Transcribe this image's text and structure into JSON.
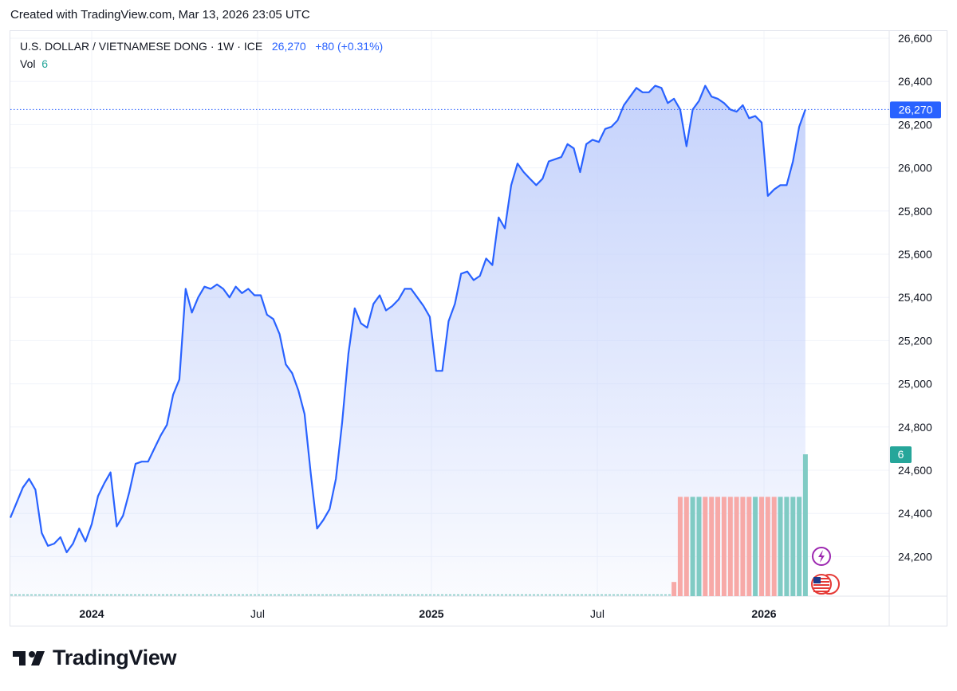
{
  "header": {
    "created_text": "Created with TradingView.com, Mar 13, 2026 23:05 UTC"
  },
  "legend": {
    "symbol": "U.S. DOLLAR / VIETNAMESE DONG · 1W · ICE",
    "last": "26,270",
    "change": "+80 (+0.31%)",
    "vol_label": "Vol",
    "vol_value": "6"
  },
  "footer": {
    "brand": "TradingView"
  },
  "colors": {
    "line": "#2962ff",
    "area_top": "#c6d3fb",
    "vol_up": "#80cbc4",
    "vol_down": "#f7a9a7",
    "vol_badge": "#26a69a",
    "price_badge": "#2962ff"
  },
  "chart_data": {
    "type": "area",
    "title": "U.S. DOLLAR / VIETNAMESE DONG · 1W · ICE",
    "x_tick_labels": [
      "2024",
      "Jul",
      "2025",
      "Jul",
      "2026"
    ],
    "y_tick_labels": [
      "24,200",
      "24,400",
      "24,600",
      "24,800",
      "25,000",
      "25,200",
      "25,400",
      "25,600",
      "25,800",
      "26,000",
      "26,200",
      "26,400",
      "26,600"
    ],
    "ylim": [
      24020,
      26640
    ],
    "grid": true,
    "last_price": 26270,
    "last_price_label": "26,270",
    "volume_label": "6",
    "series": [
      {
        "name": "USD/VND",
        "values": [
          24380,
          24450,
          24520,
          24560,
          24510,
          24310,
          24250,
          24260,
          24290,
          24220,
          24260,
          24330,
          24270,
          24350,
          24480,
          24540,
          24590,
          24340,
          24390,
          24500,
          24630,
          24640,
          24640,
          24700,
          24760,
          24810,
          24950,
          25020,
          25440,
          25330,
          25400,
          25450,
          25440,
          25460,
          25440,
          25400,
          25450,
          25420,
          25440,
          25410,
          25410,
          25320,
          25300,
          25230,
          25090,
          25050,
          24970,
          24860,
          24580,
          24330,
          24370,
          24420,
          24560,
          24820,
          25140,
          25350,
          25280,
          25260,
          25370,
          25410,
          25340,
          25360,
          25390,
          25440,
          25440,
          25400,
          25360,
          25310,
          25060,
          25060,
          25290,
          25370,
          25510,
          25520,
          25480,
          25500,
          25580,
          25550,
          25770,
          25720,
          25920,
          26020,
          25980,
          25950,
          25920,
          25950,
          26030,
          26040,
          26050,
          26110,
          26090,
          25980,
          26110,
          26130,
          26120,
          26180,
          26190,
          26220,
          26290,
          26330,
          26370,
          26350,
          26350,
          26380,
          26370,
          26300,
          26320,
          26270,
          26100,
          26270,
          26310,
          26380,
          26330,
          26320,
          26300,
          26270,
          26260,
          26290,
          26230,
          26240,
          26210,
          25870,
          25900,
          25920,
          25920,
          26030,
          26190,
          26270
        ]
      },
      {
        "name": "Vol",
        "values": [
          0.6,
          4.2,
          4.2,
          4.2,
          4.2,
          4.2,
          4.2,
          4.2,
          4.2,
          4.2,
          4.2,
          4.2,
          4.2,
          4.2,
          4.2,
          4.2,
          4.2,
          4.2,
          4.2,
          4.2,
          4.2,
          6
        ],
        "directions": [
          "down",
          "down",
          "down",
          "up",
          "up",
          "down",
          "down",
          "down",
          "down",
          "down",
          "down",
          "down",
          "down",
          "up",
          "down",
          "down",
          "down",
          "up",
          "up",
          "up",
          "up",
          "up"
        ]
      }
    ]
  }
}
